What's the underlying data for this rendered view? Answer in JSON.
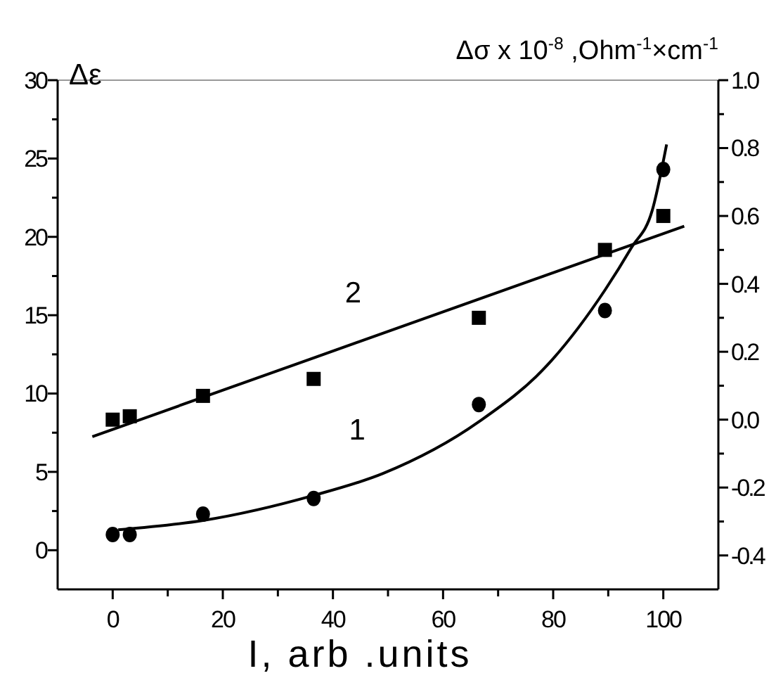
{
  "chart_data": {
    "type": "scatter",
    "xlabel": "I, arb .units",
    "ylabel": "Δε",
    "y2label": "Δσ x 10$^{-8}$ ,Ohm$^{-1}$×cm$^{-1}$",
    "xlim": [
      -10,
      110
    ],
    "xticks": [
      0,
      {
        "value": 10,
        "label": null
      },
      20,
      {
        "value": 30,
        "label": null
      },
      40,
      {
        "value": 50,
        "label": null
      },
      60,
      {
        "value": 70,
        "label": null
      },
      80,
      {
        "value": 90,
        "label": null
      },
      100
    ],
    "ylim": [
      -2.5,
      30
    ],
    "yticks": [
      0,
      {
        "value": 2.5,
        "label": null
      },
      5,
      {
        "value": 7.5,
        "label": null
      },
      10,
      {
        "value": 12.5,
        "label": null
      },
      15,
      {
        "value": 17.5,
        "label": null
      },
      20,
      {
        "value": 22.5,
        "label": null
      },
      25,
      {
        "value": 27.5,
        "label": null
      },
      30
    ],
    "y2lim": [
      -0.5,
      1.0
    ],
    "y2ticks": [
      {
        "value": -0.4,
        "label": "-0.4"
      },
      {
        "value": -0.3,
        "label": null
      },
      {
        "value": -0.2,
        "label": "-0.2"
      },
      {
        "value": -0.1,
        "label": null
      },
      {
        "value": 0,
        "label": "0.0"
      },
      {
        "value": 0.1,
        "label": null
      },
      {
        "value": 0.2,
        "label": "0.2"
      },
      {
        "value": 0.3,
        "label": null
      },
      {
        "value": 0.4,
        "label": "0.4"
      },
      {
        "value": 0.5,
        "label": null
      },
      {
        "value": 0.6,
        "label": "0.6"
      },
      {
        "value": 0.7,
        "label": null
      },
      {
        "value": 0.8,
        "label": "0.8"
      },
      {
        "value": 0.9,
        "label": null
      },
      {
        "value": 1.0,
        "label": "1.0"
      }
    ],
    "series": [
      {
        "marker": "circle",
        "color": "#000000",
        "x": [
          0,
          3.1,
          16.4,
          36.5,
          66.5,
          89.4,
          100
        ],
        "values": [
          1.0,
          1.0,
          2.3,
          3.3,
          9.3,
          15.3,
          24.3
        ]
      },
      {
        "type": "line",
        "name": "1",
        "marker": "none",
        "color": "#000000",
        "x": [
          1,
          16.4,
          36.5,
          49.1,
          66.5,
          78.9,
          89.4,
          94.2,
          98,
          100.6
        ],
        "values": [
          1.3,
          1.9,
          3.5,
          4.9,
          8.2,
          11.8,
          16.6,
          19.3,
          21.7,
          25.9
        ]
      },
      {
        "marker": "square",
        "axis": "y2",
        "color": "#000000",
        "x": [
          0,
          3.1,
          16.4,
          36.5,
          66.5,
          89.4,
          100
        ],
        "values": [
          0.0,
          0.01,
          0.07,
          0.12,
          0.3,
          0.5,
          0.6
        ]
      },
      {
        "type": "line",
        "name": "2",
        "marker": "none",
        "axis": "y2",
        "color": "#000000",
        "x": [
          -3.7,
          103.8
        ],
        "values": [
          -0.05,
          0.57
        ]
      }
    ]
  }
}
